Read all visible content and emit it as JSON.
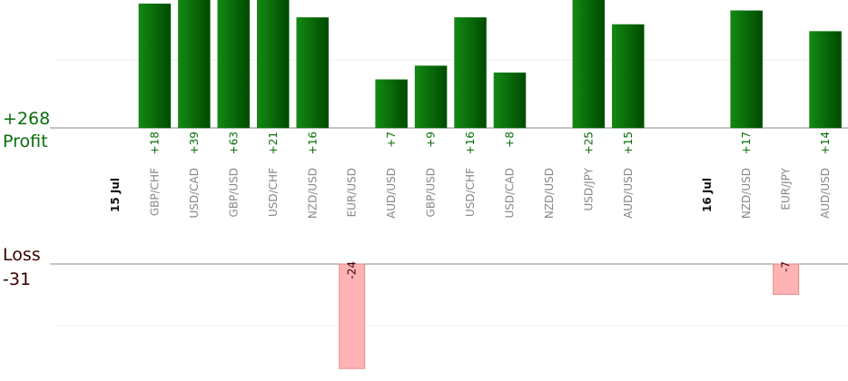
{
  "chart_data": {
    "type": "bar",
    "panels": {
      "profit": "Profit",
      "loss": "Loss"
    },
    "totals": {
      "profit": {
        "value": 268,
        "label": "+268"
      },
      "loss": -31
    },
    "profit_color": "#0a6e0a",
    "loss_color": "#ffb3b3",
    "groups": [
      {
        "date": "15 Jul",
        "categories": [
          "GBP/CHF",
          "USD/CAD",
          "GBP/USD",
          "USD/CHF",
          "NZD/USD",
          "EUR/USD",
          "AUD/USD",
          "GBP/USD",
          "USD/CHF",
          "USD/CAD",
          "NZD/USD",
          "USD/JPY",
          "AUD/USD"
        ],
        "values": [
          18,
          39,
          63,
          21,
          16,
          -24,
          7,
          9,
          16,
          8,
          null,
          25,
          15
        ],
        "value_labels": [
          "+18",
          "+39",
          "+63",
          "+21",
          "+16",
          "-24",
          "+7",
          "+9",
          "+16",
          "+8",
          null,
          "+25",
          "+15"
        ]
      },
      {
        "date": "16 Jul",
        "categories": [
          "NZD/USD",
          "EUR/JPY",
          "AUD/USD"
        ],
        "values": [
          17,
          -7,
          14
        ],
        "value_labels": [
          "+17",
          "-7",
          "+14"
        ]
      }
    ]
  }
}
